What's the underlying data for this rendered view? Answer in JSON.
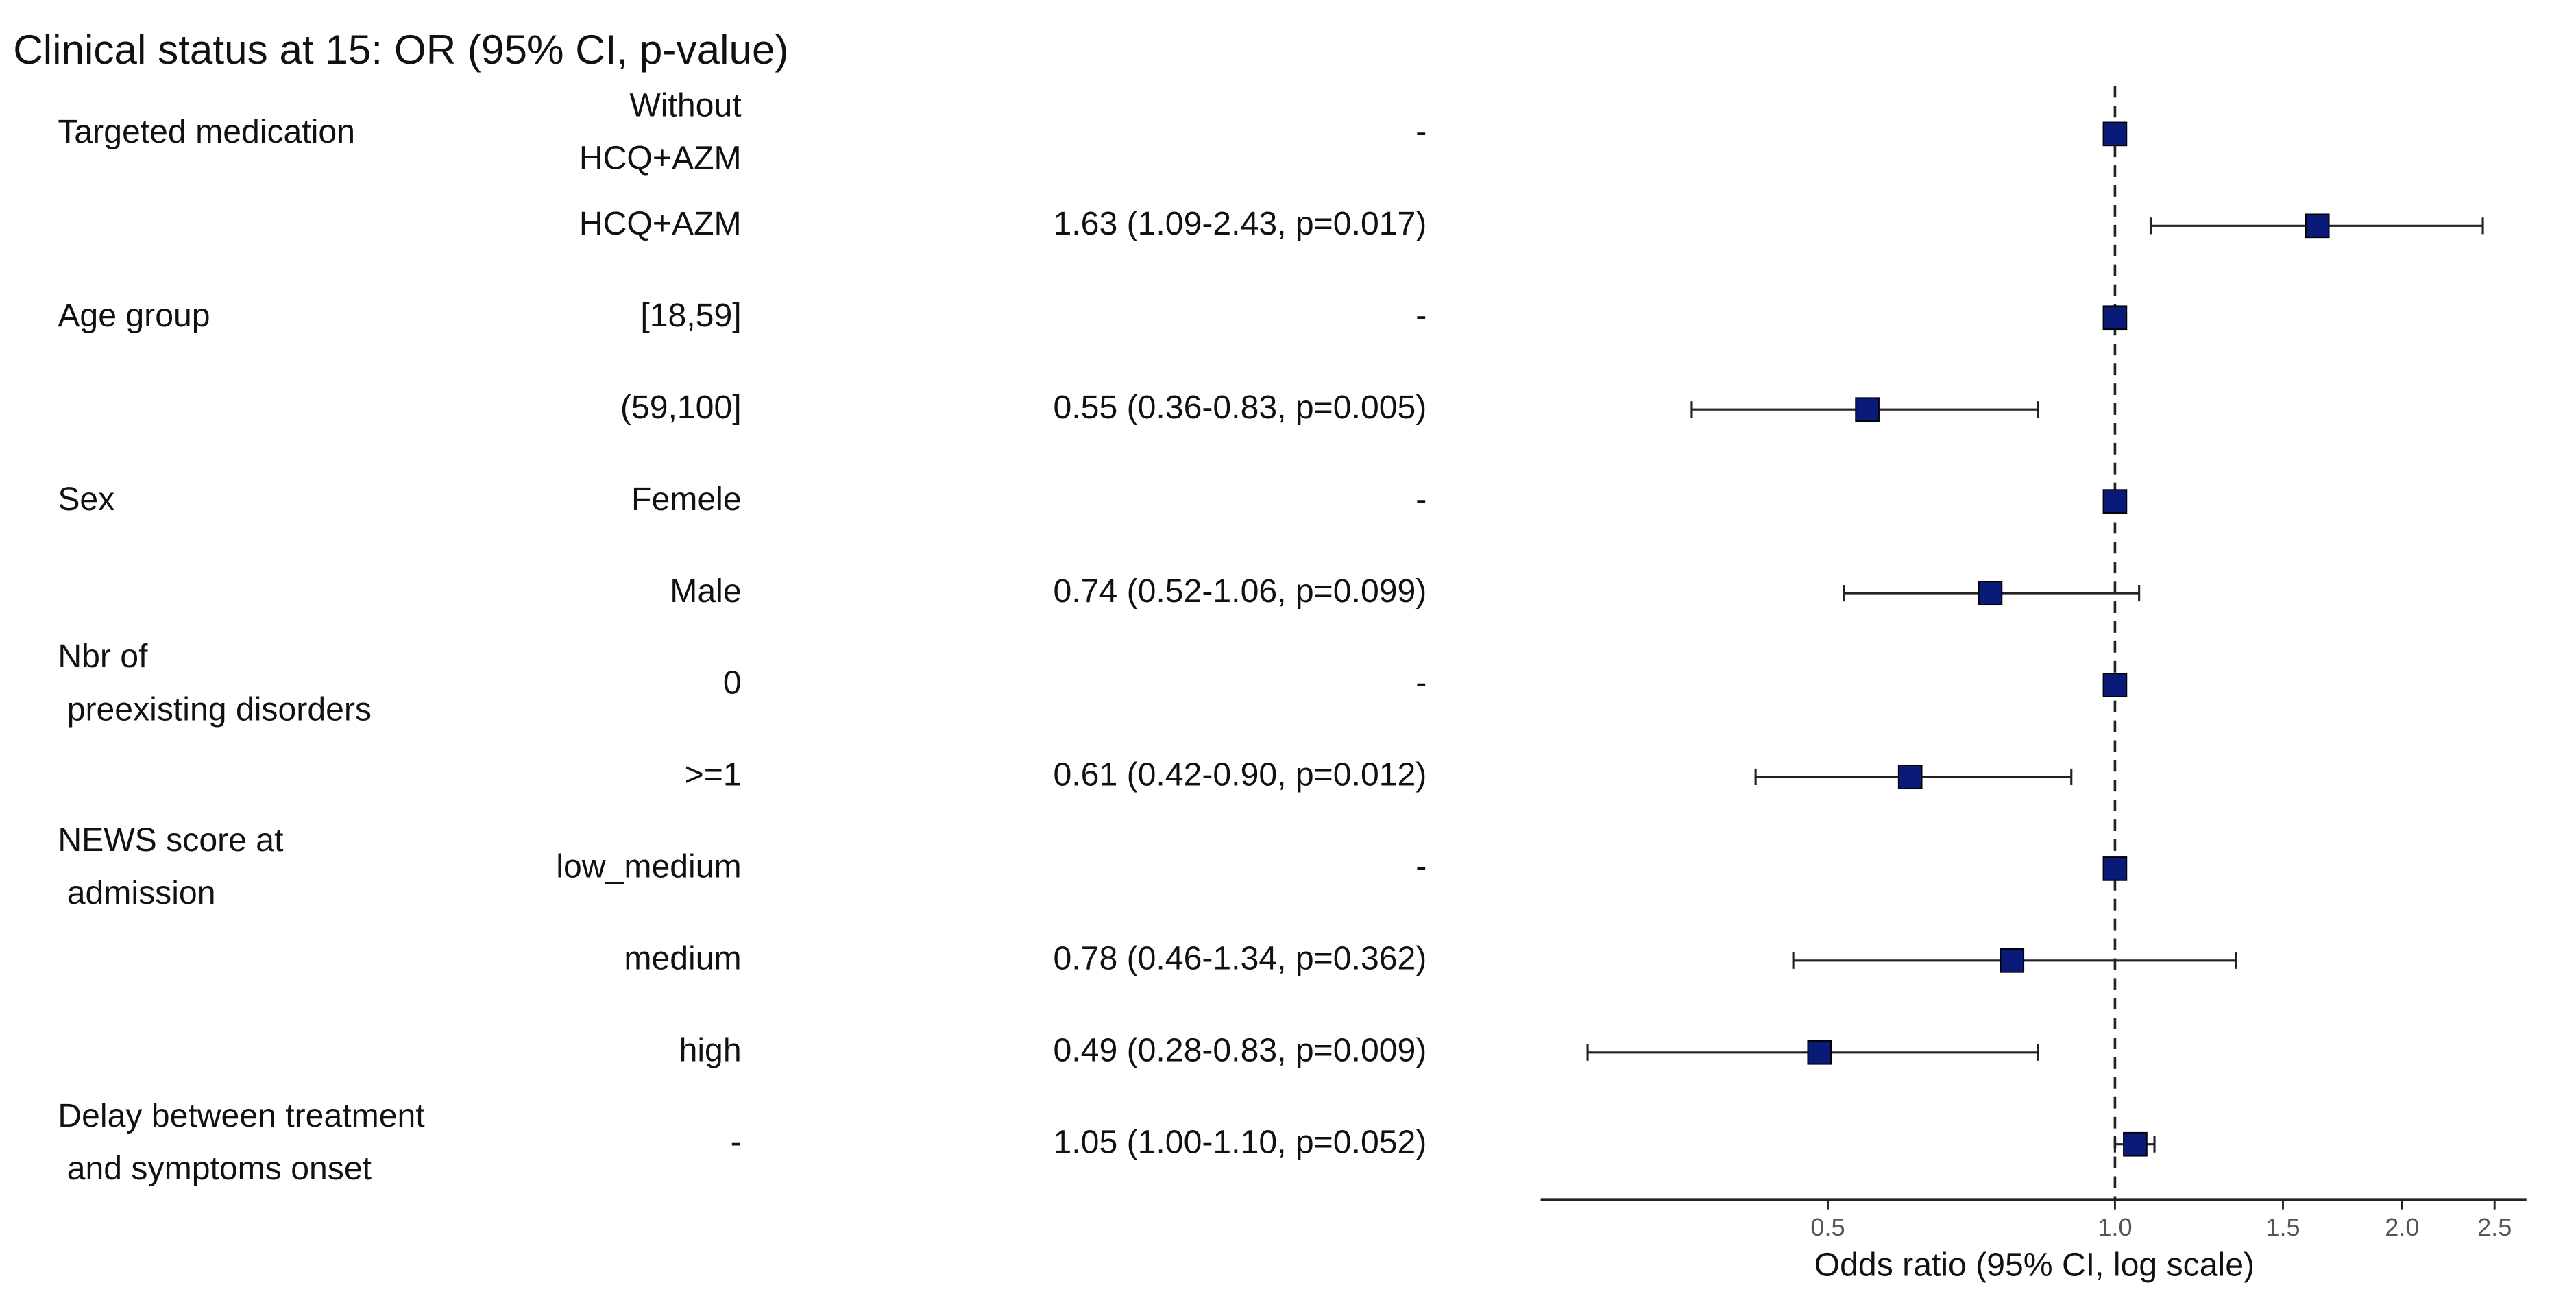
{
  "chart_data": {
    "type": "forest",
    "title": "Clinical status at 15: OR (95% CI, p-value)",
    "x_label": "Odds ratio (95% CI, log scale)",
    "log_scale": true,
    "xlim": [
      0.25,
      2.7
    ],
    "xticks": [
      0.5,
      {
        "value": 1,
        "label": "1.0"
      },
      1.5,
      {
        "value": 2,
        "label": "2.0"
      },
      2.5
    ],
    "reference_line": 1,
    "color": "#0a1a78",
    "variables": [
      {
        "name": [
          "Targeted medication"
        ],
        "levels": [
          {
            "level": [
              "Without",
              "HCQ+AZM"
            ],
            "value": 1,
            "ci": null,
            "value_label": "-"
          },
          {
            "level": [
              "HCQ+AZM"
            ],
            "value": 1.63,
            "ci": [
              1.09,
              2.43
            ],
            "value_label": "1.63 (1.09-2.43, p=0.017)"
          }
        ]
      },
      {
        "name": [
          "Age group"
        ],
        "levels": [
          {
            "level": [
              "[18,59]"
            ],
            "value": 1,
            "ci": null,
            "value_label": "-"
          },
          {
            "level": [
              "(59,100]"
            ],
            "value": 0.55,
            "ci": [
              0.36,
              0.83
            ],
            "value_label": "0.55 (0.36-0.83, p=0.005)"
          }
        ]
      },
      {
        "name": [
          "Sex"
        ],
        "levels": [
          {
            "level": [
              "Femele"
            ],
            "value": 1,
            "ci": null,
            "value_label": "-"
          },
          {
            "level": [
              "Male"
            ],
            "value": 0.74,
            "ci": [
              0.52,
              1.06
            ],
            "value_label": "0.74 (0.52-1.06, p=0.099)"
          }
        ]
      },
      {
        "name": [
          "Nbr of",
          " preexisting disorders"
        ],
        "levels": [
          {
            "level": [
              "0"
            ],
            "value": 1,
            "ci": null,
            "value_label": "-"
          },
          {
            "level": [
              ">=1"
            ],
            "value": 0.61,
            "ci": [
              0.42,
              0.9
            ],
            "value_label": "0.61 (0.42-0.90, p=0.012)"
          }
        ]
      },
      {
        "name": [
          "NEWS score at",
          " admission"
        ],
        "levels": [
          {
            "level": [
              "low_medium"
            ],
            "value": 1,
            "ci": null,
            "value_label": "-"
          },
          {
            "level": [
              "medium"
            ],
            "value": 0.78,
            "ci": [
              0.46,
              1.34
            ],
            "value_label": "0.78 (0.46-1.34, p=0.362)"
          },
          {
            "level": [
              "high"
            ],
            "value": 0.49,
            "ci": [
              0.28,
              0.83
            ],
            "value_label": "0.49 (0.28-0.83, p=0.009)"
          }
        ]
      },
      {
        "name": [
          "Delay between treatment",
          " and symptoms onset"
        ],
        "levels": [
          {
            "level": [
              "-"
            ],
            "value": 1.05,
            "ci": [
              1.0,
              1.1
            ],
            "value_label": "1.05 (1.00-1.10, p=0.052)"
          }
        ]
      }
    ]
  }
}
